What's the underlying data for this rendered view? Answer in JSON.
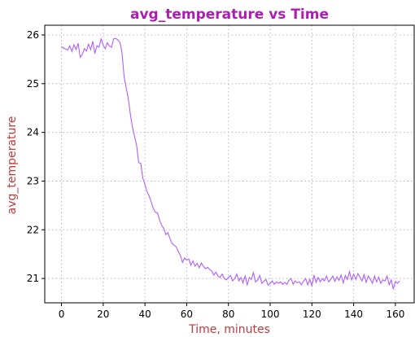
{
  "chart_data": {
    "type": "line",
    "title": "avg_temperature vs Time",
    "xlabel": "Time, minutes",
    "ylabel": "avg_temperature",
    "xlim": [
      -8,
      169
    ],
    "ylim": [
      20.5,
      26.2
    ],
    "xticks": [
      0,
      20,
      40,
      60,
      80,
      100,
      120,
      140,
      160
    ],
    "yticks": [
      21,
      22,
      23,
      24,
      25,
      26
    ],
    "grid": true,
    "legend": "none",
    "colors": {
      "title": "#b01bb3",
      "axis_label": "#c0393b",
      "line": "#b060ff",
      "grid": "#b9b3d6"
    },
    "series": [
      {
        "x": [
          0,
          1,
          2,
          3,
          4,
          5,
          6,
          7,
          8,
          9,
          10,
          11,
          12,
          13,
          14,
          15,
          16,
          17,
          18,
          19,
          20,
          21,
          22,
          23,
          24,
          25,
          26,
          27,
          28,
          29,
          30,
          31,
          32,
          33,
          34,
          35,
          36,
          37,
          38,
          39,
          40,
          41,
          42,
          43,
          44,
          45,
          46,
          47,
          48,
          49,
          50,
          51,
          52,
          53,
          54,
          55,
          56,
          57,
          58,
          59,
          60,
          61,
          62,
          63,
          64,
          65,
          66,
          67,
          68,
          69,
          70,
          71,
          72,
          73,
          74,
          75,
          76,
          77,
          78,
          79,
          80,
          81,
          82,
          83,
          84,
          85,
          86,
          87,
          88,
          89,
          90,
          91,
          92,
          93,
          94,
          95,
          96,
          97,
          98,
          99,
          100,
          101,
          102,
          103,
          104,
          105,
          106,
          107,
          108,
          109,
          110,
          111,
          112,
          113,
          114,
          115,
          116,
          117,
          118,
          119,
          120,
          121,
          122,
          123,
          124,
          125,
          126,
          127,
          128,
          129,
          130,
          131,
          132,
          133,
          134,
          135,
          136,
          137,
          138,
          139,
          140,
          141,
          142,
          143,
          144,
          145,
          146,
          147,
          148,
          149,
          150,
          151,
          152,
          153,
          154,
          155,
          156,
          157,
          158,
          159,
          160,
          161,
          162
        ],
        "y": [
          25.76,
          25.73,
          25.71,
          25.69,
          25.78,
          25.66,
          25.8,
          25.7,
          25.83,
          25.54,
          25.6,
          25.72,
          25.67,
          25.81,
          25.7,
          25.87,
          25.62,
          25.78,
          25.75,
          25.92,
          25.79,
          25.72,
          25.84,
          25.77,
          25.75,
          25.92,
          25.93,
          25.9,
          25.85,
          25.64,
          25.15,
          24.92,
          24.7,
          24.38,
          24.11,
          23.92,
          23.74,
          23.38,
          23.36,
          23.06,
          22.93,
          22.78,
          22.7,
          22.57,
          22.44,
          22.36,
          22.35,
          22.2,
          22.09,
          22.03,
          21.9,
          21.94,
          21.82,
          21.72,
          21.68,
          21.65,
          21.55,
          21.47,
          21.33,
          21.42,
          21.38,
          21.4,
          21.27,
          21.36,
          21.25,
          21.31,
          21.22,
          21.32,
          21.25,
          21.2,
          21.23,
          21.19,
          21.15,
          21.07,
          21.13,
          21.05,
          21.02,
          21.09,
          21.0,
          20.97,
          21.02,
          21.06,
          20.95,
          21.0,
          21.09,
          20.95,
          21.02,
          20.91,
          21.05,
          20.87,
          21.02,
          20.98,
          21.12,
          20.93,
          20.97,
          21.06,
          20.9,
          20.94,
          20.98,
          20.86,
          20.9,
          20.95,
          20.88,
          20.93,
          20.9,
          20.93,
          20.88,
          20.92,
          20.88,
          20.96,
          21.0,
          20.88,
          20.95,
          20.91,
          20.93,
          20.87,
          20.95,
          21.0,
          20.87,
          20.98,
          20.85,
          21.07,
          20.92,
          21.02,
          20.93,
          21.0,
          20.95,
          21.05,
          20.93,
          20.98,
          21.05,
          20.94,
          21.03,
          20.96,
          21.07,
          20.91,
          21.06,
          20.98,
          21.14,
          20.97,
          21.09,
          20.98,
          21.1,
          21.03,
          20.95,
          21.08,
          20.92,
          21.05,
          20.98,
          20.9,
          21.05,
          20.93,
          21.03,
          20.9,
          20.97,
          20.95,
          21.05,
          20.87,
          20.97,
          20.78,
          20.94,
          20.9,
          20.95
        ]
      }
    ]
  }
}
